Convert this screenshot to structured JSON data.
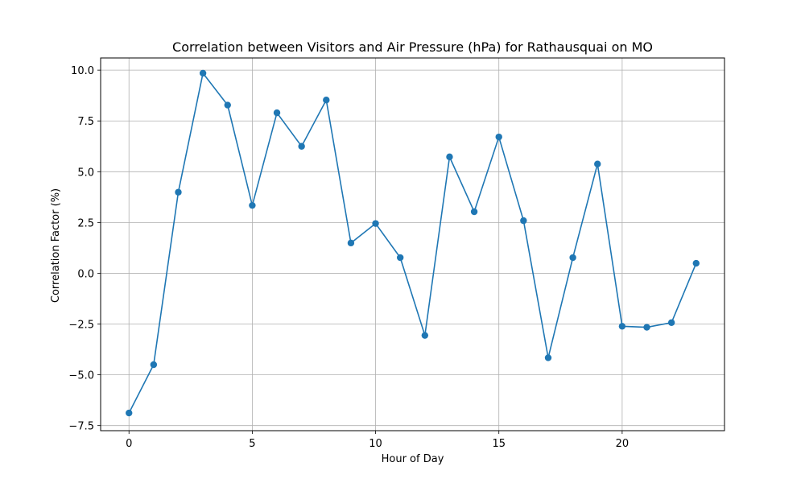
{
  "chart_data": {
    "type": "line",
    "title": "Correlation between Visitors and Air Pressure (hPa) for Rathausquai on MO",
    "xlabel": "Hour of Day",
    "ylabel": "Correlation Factor (%)",
    "xlim": [
      -1.15,
      24.15
    ],
    "ylim": [
      -7.75,
      10.6
    ],
    "xticks": [
      0,
      5,
      10,
      15,
      20
    ],
    "xtick_labels": [
      "0",
      "5",
      "10",
      "15",
      "20"
    ],
    "yticks": [
      -7.5,
      -5.0,
      -2.5,
      0.0,
      2.5,
      5.0,
      7.5,
      10.0
    ],
    "ytick_labels": [
      "−7.5",
      "−5.0",
      "−2.5",
      "0.0",
      "2.5",
      "5.0",
      "7.5",
      "10.0"
    ],
    "grid": true,
    "marker": "circle",
    "color": "#1f77b4",
    "series": [
      {
        "x": [
          0,
          1,
          2,
          3,
          4,
          5,
          6,
          7,
          8,
          9,
          10,
          11,
          12,
          13,
          14,
          15,
          16,
          17,
          18,
          19,
          20,
          21,
          22,
          23
        ],
        "values": [
          -6.88,
          -4.5,
          3.99,
          9.85,
          8.28,
          3.34,
          7.9,
          6.25,
          8.53,
          1.49,
          2.45,
          0.77,
          -3.06,
          5.73,
          3.03,
          6.71,
          2.59,
          -4.16,
          0.77,
          5.38,
          -2.61,
          -2.66,
          -2.43,
          0.49
        ]
      }
    ]
  }
}
